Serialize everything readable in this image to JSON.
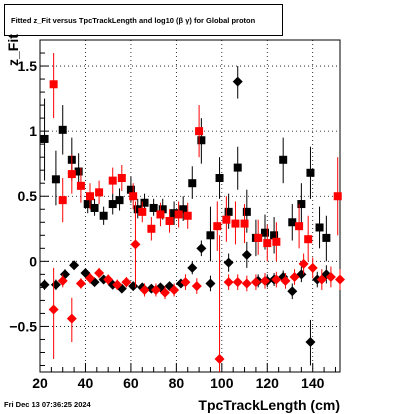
{
  "title": "Fitted  z_Fit  versus TpcTrackLength and log10 (β γ) for Global proton",
  "footer_date": "Fri Dec 13 07:36:25 2024",
  "chart_data": {
    "type": "scatter",
    "title": "Fitted  z_Fit  versus TpcTrackLength and log10 (β γ) for Global proton",
    "xlabel": "TpcTrackLength (cm)",
    "ylabel": "z_Fit",
    "xlim": [
      20,
      152
    ],
    "ylim": [
      -0.85,
      1.7
    ],
    "xticks": [
      20,
      40,
      60,
      80,
      100,
      120,
      140
    ],
    "yticks": [
      -0.5,
      0,
      0.5,
      1,
      1.5
    ],
    "ytick_labels": [
      "−0.5",
      "0",
      "0.5",
      "1",
      "1.5"
    ],
    "grid": true,
    "colors": {
      "black": "#000000",
      "red": "#ff0000"
    },
    "series": [
      {
        "marker": "square",
        "color": "#000000",
        "points": [
          {
            "x": 22,
            "y": 0.94,
            "lo": 0.62,
            "hi": 1.25
          },
          {
            "x": 27,
            "y": 0.63,
            "lo": 0.43,
            "hi": 0.85
          },
          {
            "x": 30,
            "y": 1.01,
            "lo": 0.82,
            "hi": 1.2
          },
          {
            "x": 34,
            "y": 0.78,
            "lo": 0.62,
            "hi": 0.95
          },
          {
            "x": 37,
            "y": 0.69,
            "lo": 0.55,
            "hi": 0.83
          },
          {
            "x": 41,
            "y": 0.44,
            "lo": 0.37,
            "hi": 0.52
          },
          {
            "x": 44,
            "y": 0.41,
            "lo": 0.35,
            "hi": 0.48
          },
          {
            "x": 48,
            "y": 0.35,
            "lo": 0.28,
            "hi": 0.42
          },
          {
            "x": 52,
            "y": 0.44,
            "lo": 0.36,
            "hi": 0.52
          },
          {
            "x": 55,
            "y": 0.47,
            "lo": 0.39,
            "hi": 0.56
          },
          {
            "x": 60,
            "y": 0.55,
            "lo": 0.45,
            "hi": 0.65
          },
          {
            "x": 63,
            "y": 0.4,
            "lo": 0.33,
            "hi": 0.48
          },
          {
            "x": 66,
            "y": 0.45,
            "lo": 0.38,
            "hi": 0.52
          },
          {
            "x": 70,
            "y": 0.41,
            "lo": 0.35,
            "hi": 0.48
          },
          {
            "x": 74,
            "y": 0.4,
            "lo": 0.32,
            "hi": 0.48
          },
          {
            "x": 79,
            "y": 0.37,
            "lo": 0.28,
            "hi": 0.46
          },
          {
            "x": 83,
            "y": 0.4,
            "lo": 0.31,
            "hi": 0.5
          },
          {
            "x": 87,
            "y": 0.6,
            "lo": 0.48,
            "hi": 0.73
          },
          {
            "x": 91,
            "y": 0.93,
            "lo": 0.75,
            "hi": 1.1
          },
          {
            "x": 95,
            "y": 0.2,
            "lo": 0.0,
            "hi": 0.42
          },
          {
            "x": 99,
            "y": 0.64,
            "lo": 0.48,
            "hi": 0.8
          },
          {
            "x": 103,
            "y": 0.38,
            "lo": 0.25,
            "hi": 0.52
          },
          {
            "x": 107,
            "y": 0.72,
            "lo": 0.55,
            "hi": 0.88
          },
          {
            "x": 111,
            "y": 0.38,
            "lo": 0.22,
            "hi": 0.55
          },
          {
            "x": 115,
            "y": 0.18,
            "lo": 0.04,
            "hi": 0.32
          },
          {
            "x": 119,
            "y": 0.22,
            "lo": 0.09,
            "hi": 0.36
          },
          {
            "x": 123,
            "y": 0.2,
            "lo": 0.06,
            "hi": 0.34
          },
          {
            "x": 127,
            "y": 0.78,
            "lo": 0.6,
            "hi": 0.95
          },
          {
            "x": 131,
            "y": 0.3,
            "lo": 0.16,
            "hi": 0.44
          },
          {
            "x": 135,
            "y": 0.44,
            "lo": 0.28,
            "hi": 0.6
          },
          {
            "x": 139,
            "y": 0.68,
            "lo": 0.48,
            "hi": 0.88
          },
          {
            "x": 143,
            "y": 0.26,
            "lo": 0.1,
            "hi": 0.42
          },
          {
            "x": 146,
            "y": 0.18,
            "lo": 0.0,
            "hi": 0.35
          }
        ]
      },
      {
        "marker": "square",
        "color": "#ff0000",
        "points": [
          {
            "x": 26,
            "y": 1.36,
            "lo": 1.1,
            "hi": 1.6
          },
          {
            "x": 30,
            "y": 0.47,
            "lo": 0.3,
            "hi": 0.64
          },
          {
            "x": 34,
            "y": 0.67,
            "lo": 0.52,
            "hi": 0.82
          },
          {
            "x": 38,
            "y": 0.58,
            "lo": 0.45,
            "hi": 0.72
          },
          {
            "x": 42,
            "y": 0.5,
            "lo": 0.4,
            "hi": 0.6
          },
          {
            "x": 46,
            "y": 0.53,
            "lo": 0.44,
            "hi": 0.62
          },
          {
            "x": 52,
            "y": 0.62,
            "lo": 0.52,
            "hi": 0.72
          },
          {
            "x": 56,
            "y": 0.64,
            "lo": 0.54,
            "hi": 0.74
          },
          {
            "x": 61,
            "y": 0.5,
            "lo": 0.4,
            "hi": 0.6
          },
          {
            "x": 65,
            "y": 0.38,
            "lo": 0.3,
            "hi": 0.46
          },
          {
            "x": 69,
            "y": 0.25,
            "lo": 0.16,
            "hi": 0.34
          },
          {
            "x": 73,
            "y": 0.36,
            "lo": 0.27,
            "hi": 0.45
          },
          {
            "x": 77,
            "y": 0.31,
            "lo": 0.22,
            "hi": 0.4
          },
          {
            "x": 81,
            "y": 0.36,
            "lo": 0.26,
            "hi": 0.46
          },
          {
            "x": 85,
            "y": 0.35,
            "lo": 0.25,
            "hi": 0.45
          },
          {
            "x": 90,
            "y": 1.0,
            "lo": 0.8,
            "hi": 1.2
          },
          {
            "x": 98,
            "y": 0.27,
            "lo": 0.08,
            "hi": 0.46
          },
          {
            "x": 102,
            "y": 0.32,
            "lo": 0.15,
            "hi": 0.5
          },
          {
            "x": 106,
            "y": 0.29,
            "lo": 0.13,
            "hi": 0.46
          },
          {
            "x": 110,
            "y": 0.29,
            "lo": 0.14,
            "hi": 0.44
          },
          {
            "x": 116,
            "y": 0.18,
            "lo": 0.05,
            "hi": 0.32
          },
          {
            "x": 120,
            "y": 0.14,
            "lo": 0.0,
            "hi": 0.28
          },
          {
            "x": 124,
            "y": 0.15,
            "lo": 0.0,
            "hi": 0.3
          },
          {
            "x": 134,
            "y": 0.27,
            "lo": 0.1,
            "hi": 0.44
          },
          {
            "x": 138,
            "y": 0.17,
            "lo": 0.0,
            "hi": 0.35
          },
          {
            "x": 151,
            "y": 0.5,
            "lo": 0.2,
            "hi": 0.8
          }
        ]
      },
      {
        "marker": "diamond",
        "color": "#000000",
        "points": [
          {
            "x": 22,
            "y": -0.18,
            "lo": -0.22,
            "hi": -0.14
          },
          {
            "x": 27,
            "y": -0.18,
            "lo": -0.22,
            "hi": -0.14
          },
          {
            "x": 31,
            "y": -0.1,
            "lo": -0.14,
            "hi": -0.06
          },
          {
            "x": 35,
            "y": -0.03,
            "lo": -0.06,
            "hi": 0.0
          },
          {
            "x": 40,
            "y": -0.09,
            "lo": -0.12,
            "hi": -0.06
          },
          {
            "x": 44,
            "y": -0.16,
            "lo": -0.19,
            "hi": -0.13
          },
          {
            "x": 48,
            "y": -0.14,
            "lo": -0.17,
            "hi": -0.11
          },
          {
            "x": 52,
            "y": -0.18,
            "lo": -0.21,
            "hi": -0.15
          },
          {
            "x": 56,
            "y": -0.21,
            "lo": -0.24,
            "hi": -0.18
          },
          {
            "x": 61,
            "y": -0.19,
            "lo": -0.22,
            "hi": -0.16
          },
          {
            "x": 65,
            "y": -0.2,
            "lo": -0.23,
            "hi": -0.17
          },
          {
            "x": 69,
            "y": -0.21,
            "lo": -0.24,
            "hi": -0.18
          },
          {
            "x": 73,
            "y": -0.2,
            "lo": -0.23,
            "hi": -0.17
          },
          {
            "x": 77,
            "y": -0.19,
            "lo": -0.22,
            "hi": -0.16
          },
          {
            "x": 82,
            "y": -0.17,
            "lo": -0.2,
            "hi": -0.14
          },
          {
            "x": 87,
            "y": -0.05,
            "lo": -0.1,
            "hi": 0.0
          },
          {
            "x": 91,
            "y": 0.1,
            "lo": 0.04,
            "hi": 0.16
          },
          {
            "x": 95,
            "y": -0.17,
            "lo": -0.23,
            "hi": -0.11
          },
          {
            "x": 103,
            "y": -0.01,
            "lo": -0.08,
            "hi": 0.06
          },
          {
            "x": 107,
            "y": 1.38,
            "lo": 1.25,
            "hi": 1.5
          },
          {
            "x": 111,
            "y": 0.05,
            "lo": -0.05,
            "hi": 0.15
          },
          {
            "x": 116,
            "y": -0.15,
            "lo": -0.2,
            "hi": -0.1
          },
          {
            "x": 120,
            "y": -0.15,
            "lo": -0.2,
            "hi": -0.1
          },
          {
            "x": 123,
            "y": -0.14,
            "lo": -0.19,
            "hi": -0.09
          },
          {
            "x": 127,
            "y": -0.12,
            "lo": -0.17,
            "hi": -0.07
          },
          {
            "x": 131,
            "y": -0.23,
            "lo": -0.29,
            "hi": -0.17
          },
          {
            "x": 135,
            "y": -0.1,
            "lo": -0.16,
            "hi": -0.04
          },
          {
            "x": 139,
            "y": -0.62,
            "lo": -0.8,
            "hi": -0.45
          },
          {
            "x": 142,
            "y": -0.14,
            "lo": -0.2,
            "hi": -0.08
          },
          {
            "x": 146,
            "y": -0.1,
            "lo": -0.17,
            "hi": -0.03
          }
        ]
      },
      {
        "marker": "diamond",
        "color": "#ff0000",
        "points": [
          {
            "x": 26,
            "y": -0.37,
            "lo": -0.75,
            "hi": -0.05
          },
          {
            "x": 30,
            "y": -0.15,
            "lo": -0.2,
            "hi": -0.1
          },
          {
            "x": 34,
            "y": -0.44,
            "lo": -0.62,
            "hi": -0.28
          },
          {
            "x": 38,
            "y": -0.17,
            "lo": -0.21,
            "hi": -0.13
          },
          {
            "x": 42,
            "y": -0.13,
            "lo": -0.17,
            "hi": -0.09
          },
          {
            "x": 46,
            "y": -0.09,
            "lo": -0.13,
            "hi": -0.05
          },
          {
            "x": 50,
            "y": -0.14,
            "lo": -0.18,
            "hi": -0.1
          },
          {
            "x": 54,
            "y": -0.18,
            "lo": -0.22,
            "hi": -0.14
          },
          {
            "x": 58,
            "y": -0.16,
            "lo": -0.2,
            "hi": -0.12
          },
          {
            "x": 62,
            "y": 0.13,
            "lo": -0.2,
            "hi": 0.46
          },
          {
            "x": 66,
            "y": -0.22,
            "lo": -0.27,
            "hi": -0.17
          },
          {
            "x": 71,
            "y": -0.22,
            "lo": -0.27,
            "hi": -0.17
          },
          {
            "x": 75,
            "y": -0.24,
            "lo": -0.29,
            "hi": -0.19
          },
          {
            "x": 79,
            "y": -0.22,
            "lo": -0.27,
            "hi": -0.17
          },
          {
            "x": 84,
            "y": -0.16,
            "lo": -0.22,
            "hi": -0.1
          },
          {
            "x": 89,
            "y": -0.19,
            "lo": -0.25,
            "hi": -0.13
          },
          {
            "x": 99,
            "y": -0.75,
            "lo": -1.2,
            "hi": 0.2
          },
          {
            "x": 103,
            "y": -0.16,
            "lo": -0.22,
            "hi": -0.1
          },
          {
            "x": 107,
            "y": -0.16,
            "lo": -0.22,
            "hi": -0.1
          },
          {
            "x": 111,
            "y": -0.17,
            "lo": -0.23,
            "hi": -0.11
          },
          {
            "x": 115,
            "y": -0.16,
            "lo": -0.22,
            "hi": -0.1
          },
          {
            "x": 119,
            "y": -0.15,
            "lo": -0.21,
            "hi": -0.09
          },
          {
            "x": 124,
            "y": -0.14,
            "lo": -0.2,
            "hi": -0.08
          },
          {
            "x": 128,
            "y": -0.15,
            "lo": -0.21,
            "hi": -0.09
          },
          {
            "x": 132,
            "y": -0.12,
            "lo": -0.18,
            "hi": -0.06
          },
          {
            "x": 136,
            "y": -0.02,
            "lo": -0.1,
            "hi": 0.06
          },
          {
            "x": 140,
            "y": -0.05,
            "lo": -0.13,
            "hi": 0.03
          },
          {
            "x": 144,
            "y": -0.14,
            "lo": -0.22,
            "hi": -0.06
          },
          {
            "x": 148,
            "y": -0.12,
            "lo": -0.2,
            "hi": -0.04
          },
          {
            "x": 152,
            "y": -0.14,
            "lo": -0.22,
            "hi": -0.06
          }
        ]
      }
    ]
  }
}
